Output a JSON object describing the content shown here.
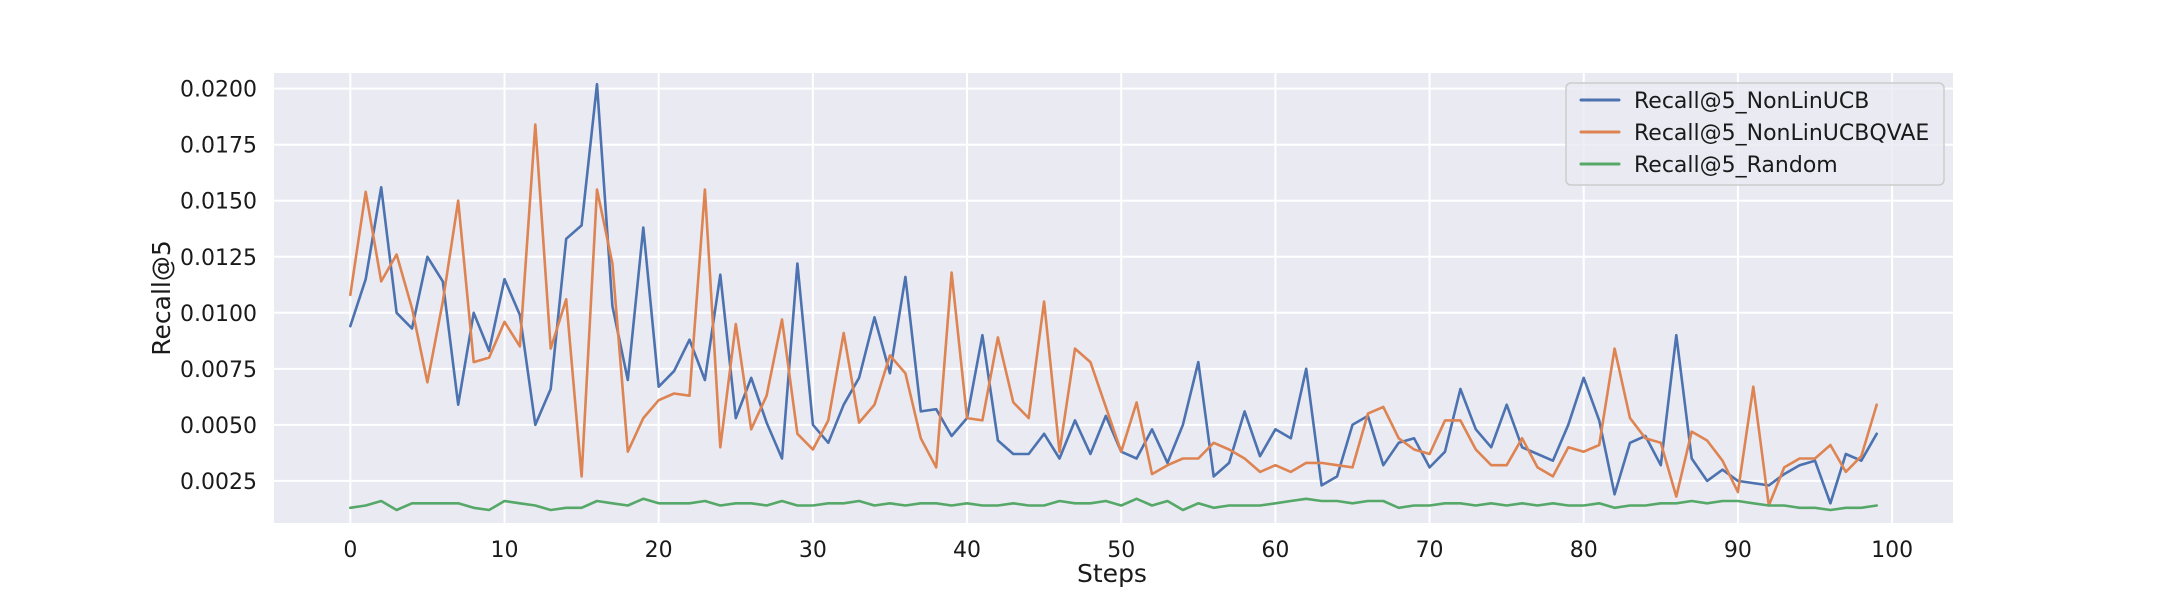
{
  "chart_data": {
    "type": "line",
    "xlabel": "Steps",
    "ylabel": "Recall@5",
    "xlim": [
      -4.95,
      103.95
    ],
    "ylim": [
      0.00062,
      0.0207
    ],
    "xticks": [
      0,
      10,
      20,
      30,
      40,
      50,
      60,
      70,
      80,
      90,
      100
    ],
    "xtick_labels": [
      "0",
      "10",
      "20",
      "30",
      "40",
      "50",
      "60",
      "70",
      "80",
      "90",
      "100"
    ],
    "yticks": [
      0.0025,
      0.005,
      0.0075,
      0.01,
      0.0125,
      0.015,
      0.0175,
      0.02
    ],
    "ytick_labels": [
      "0.0025",
      "0.0050",
      "0.0075",
      "0.0100",
      "0.0125",
      "0.0150",
      "0.0175",
      "0.0200"
    ],
    "grid": true,
    "legend_position": "top-right",
    "x": [
      0,
      1,
      2,
      3,
      4,
      5,
      6,
      7,
      8,
      9,
      10,
      11,
      12,
      13,
      14,
      15,
      16,
      17,
      18,
      19,
      20,
      21,
      22,
      23,
      24,
      25,
      26,
      27,
      28,
      29,
      30,
      31,
      32,
      33,
      34,
      35,
      36,
      37,
      38,
      39,
      40,
      41,
      42,
      43,
      44,
      45,
      46,
      47,
      48,
      49,
      50,
      51,
      52,
      53,
      54,
      55,
      56,
      57,
      58,
      59,
      60,
      61,
      62,
      63,
      64,
      65,
      66,
      67,
      68,
      69,
      70,
      71,
      72,
      73,
      74,
      75,
      76,
      77,
      78,
      79,
      80,
      81,
      82,
      83,
      84,
      85,
      86,
      87,
      88,
      89,
      90,
      91,
      92,
      93,
      94,
      95,
      96,
      97,
      98,
      99
    ],
    "series": [
      {
        "name": "Recall@5_NonLinUCB",
        "color": "#4c72b0",
        "values": [
          0.0094,
          0.0115,
          0.0156,
          0.01,
          0.0093,
          0.0125,
          0.0114,
          0.0059,
          0.01,
          0.0083,
          0.0115,
          0.0099,
          0.005,
          0.0066,
          0.0133,
          0.0139,
          0.0202,
          0.0103,
          0.007,
          0.0138,
          0.0067,
          0.0074,
          0.0088,
          0.007,
          0.0117,
          0.0053,
          0.0071,
          0.0051,
          0.0035,
          0.0122,
          0.005,
          0.0042,
          0.0059,
          0.0071,
          0.0098,
          0.0073,
          0.0116,
          0.0056,
          0.0057,
          0.0045,
          0.0053,
          0.009,
          0.0043,
          0.0037,
          0.0037,
          0.0046,
          0.0035,
          0.0052,
          0.0037,
          0.0054,
          0.0038,
          0.0035,
          0.0048,
          0.0033,
          0.005,
          0.0078,
          0.0027,
          0.0033,
          0.0056,
          0.0036,
          0.0048,
          0.0044,
          0.0075,
          0.0023,
          0.0027,
          0.005,
          0.0054,
          0.0032,
          0.0042,
          0.0044,
          0.0031,
          0.0038,
          0.0066,
          0.0048,
          0.004,
          0.0059,
          0.004,
          0.0037,
          0.0034,
          0.005,
          0.0071,
          0.0052,
          0.0019,
          0.0042,
          0.0045,
          0.0032,
          0.009,
          0.0035,
          0.0025,
          0.003,
          0.0025,
          0.0024,
          0.0023,
          0.0028,
          0.0032,
          0.0034,
          0.0015,
          0.0037,
          0.0034,
          0.0046
        ]
      },
      {
        "name": "Recall@5_NonLinUCBQVAE",
        "color": "#dd8452",
        "values": [
          0.0108,
          0.0154,
          0.0114,
          0.0126,
          0.0102,
          0.0069,
          0.0105,
          0.015,
          0.0078,
          0.008,
          0.0096,
          0.0085,
          0.0184,
          0.0084,
          0.0106,
          0.0027,
          0.0155,
          0.0122,
          0.0038,
          0.0053,
          0.0061,
          0.0064,
          0.0063,
          0.0155,
          0.004,
          0.0095,
          0.0048,
          0.0063,
          0.0097,
          0.0046,
          0.0039,
          0.0052,
          0.0091,
          0.0051,
          0.0059,
          0.0081,
          0.0073,
          0.0044,
          0.0031,
          0.0118,
          0.0053,
          0.0052,
          0.0089,
          0.006,
          0.0053,
          0.0105,
          0.0038,
          0.0084,
          0.0078,
          0.0058,
          0.0038,
          0.006,
          0.0028,
          0.0032,
          0.0035,
          0.0035,
          0.0042,
          0.0039,
          0.0035,
          0.0029,
          0.0032,
          0.0029,
          0.0033,
          0.0033,
          0.0032,
          0.0031,
          0.0055,
          0.0058,
          0.0044,
          0.0039,
          0.0037,
          0.0052,
          0.0052,
          0.0039,
          0.0032,
          0.0032,
          0.0044,
          0.0031,
          0.0027,
          0.004,
          0.0038,
          0.0041,
          0.0084,
          0.0053,
          0.0044,
          0.0042,
          0.0018,
          0.0047,
          0.0043,
          0.0034,
          0.002,
          0.0067,
          0.0014,
          0.0031,
          0.0035,
          0.0035,
          0.0041,
          0.0029,
          0.0036,
          0.0059
        ]
      },
      {
        "name": "Recall@5_Random",
        "color": "#55a868",
        "values": [
          0.0013,
          0.0014,
          0.0016,
          0.0012,
          0.0015,
          0.0015,
          0.0015,
          0.0015,
          0.0013,
          0.0012,
          0.0016,
          0.0015,
          0.0014,
          0.0012,
          0.0013,
          0.0013,
          0.0016,
          0.0015,
          0.0014,
          0.0017,
          0.0015,
          0.0015,
          0.0015,
          0.0016,
          0.0014,
          0.0015,
          0.0015,
          0.0014,
          0.0016,
          0.0014,
          0.0014,
          0.0015,
          0.0015,
          0.0016,
          0.0014,
          0.0015,
          0.0014,
          0.0015,
          0.0015,
          0.0014,
          0.0015,
          0.0014,
          0.0014,
          0.0015,
          0.0014,
          0.0014,
          0.0016,
          0.0015,
          0.0015,
          0.0016,
          0.0014,
          0.0017,
          0.0014,
          0.0016,
          0.0012,
          0.0015,
          0.0013,
          0.0014,
          0.0014,
          0.0014,
          0.0015,
          0.0016,
          0.0017,
          0.0016,
          0.0016,
          0.0015,
          0.0016,
          0.0016,
          0.0013,
          0.0014,
          0.0014,
          0.0015,
          0.0015,
          0.0014,
          0.0015,
          0.0014,
          0.0015,
          0.0014,
          0.0015,
          0.0014,
          0.0014,
          0.0015,
          0.0013,
          0.0014,
          0.0014,
          0.0015,
          0.0015,
          0.0016,
          0.0015,
          0.0016,
          0.0016,
          0.0015,
          0.0014,
          0.0014,
          0.0013,
          0.0013,
          0.0012,
          0.0013,
          0.0013,
          0.0014
        ]
      }
    ]
  }
}
